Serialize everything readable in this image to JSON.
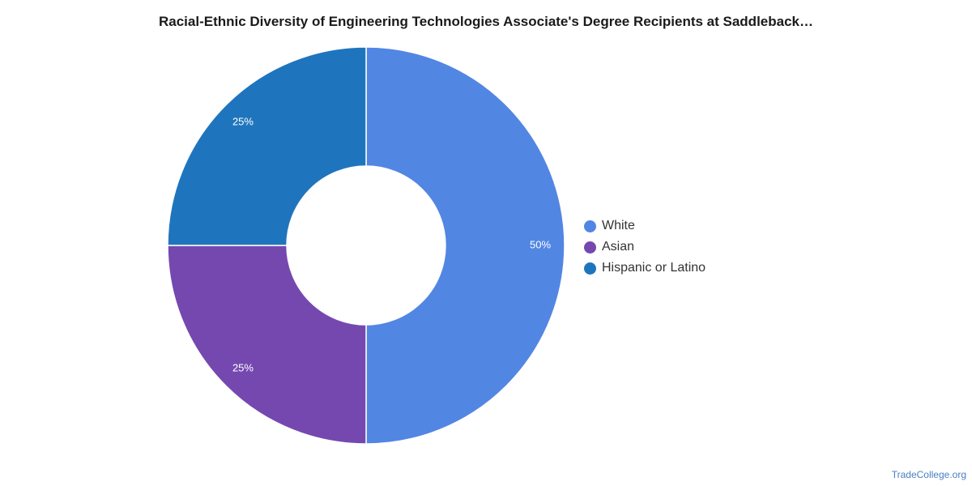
{
  "title": "Racial-Ethnic Diversity of Engineering Technologies Associate's Degree Recipients at Saddleback…",
  "watermark": "TradeCollege.org",
  "chart_data": {
    "type": "pie",
    "donut": true,
    "title": "Racial-Ethnic Diversity of Engineering Technologies Associate's Degree Recipients at Saddleback…",
    "slices": [
      {
        "label": "White",
        "value": 50,
        "display": "50%",
        "color": "#5286e3"
      },
      {
        "label": "Asian",
        "value": 25,
        "display": "25%",
        "color": "#7548b0"
      },
      {
        "label": "Hispanic or Latino",
        "value": 25,
        "display": "25%",
        "color": "#1f75bd"
      }
    ],
    "legend_position": "right"
  }
}
